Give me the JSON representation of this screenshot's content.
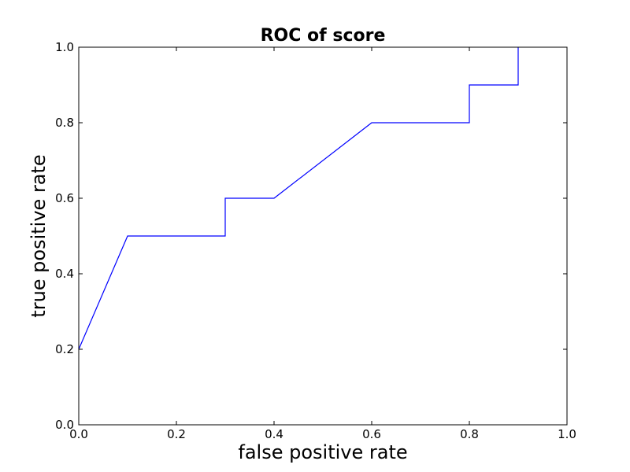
{
  "chart_data": {
    "type": "line",
    "title": "ROC of score",
    "xlabel": "false positive rate",
    "ylabel": "true positive rate",
    "xlim": [
      0.0,
      1.0
    ],
    "ylim": [
      0.0,
      1.0
    ],
    "xticks": [
      "0.0",
      "0.2",
      "0.4",
      "0.6",
      "0.8",
      "1.0"
    ],
    "yticks": [
      "0.0",
      "0.2",
      "0.4",
      "0.6",
      "0.8",
      "1.0"
    ],
    "grid": false,
    "series": [
      {
        "color": "#0000ff",
        "x": [
          0.0,
          0.1,
          0.3,
          0.3,
          0.4,
          0.6,
          0.8,
          0.8,
          0.9,
          0.9
        ],
        "y": [
          0.2,
          0.5,
          0.5,
          0.6,
          0.6,
          0.8,
          0.8,
          0.9,
          0.9,
          1.0
        ]
      }
    ]
  }
}
